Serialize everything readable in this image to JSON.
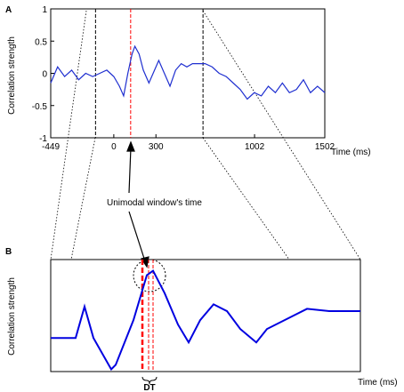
{
  "chart_data": [
    {
      "type": "line",
      "panel_label": "A",
      "ylabel": "Correlation strength",
      "xlabel": "Time (ms)",
      "xlim": [
        -449,
        1502
      ],
      "ylim": [
        -1,
        1
      ],
      "xticks": [
        -449,
        0,
        300,
        1002,
        1502
      ],
      "yticks": [
        -1,
        -0.5,
        0,
        0.5,
        1
      ],
      "x": [
        -449,
        -400,
        -350,
        -300,
        -250,
        -200,
        -150,
        -100,
        -50,
        0,
        40,
        70,
        100,
        130,
        150,
        180,
        210,
        250,
        290,
        320,
        360,
        400,
        440,
        480,
        520,
        560,
        600,
        650,
        700,
        750,
        800,
        850,
        900,
        950,
        1000,
        1050,
        1100,
        1150,
        1200,
        1250,
        1300,
        1350,
        1400,
        1450,
        1502
      ],
      "series": [
        {
          "color": "#1f2fd0",
          "values": [
            -0.15,
            0.1,
            -0.05,
            0.05,
            -0.1,
            0.0,
            -0.05,
            0.0,
            0.05,
            -0.05,
            -0.2,
            -0.35,
            0.0,
            0.3,
            0.42,
            0.3,
            0.05,
            -0.15,
            0.05,
            0.2,
            0.0,
            -0.2,
            0.05,
            0.15,
            0.1,
            0.15,
            0.15,
            0.15,
            0.1,
            0.0,
            -0.05,
            -0.15,
            -0.25,
            -0.4,
            -0.3,
            -0.35,
            -0.2,
            -0.3,
            -0.15,
            -0.3,
            -0.25,
            -0.1,
            -0.3,
            -0.2,
            -0.3
          ]
        }
      ],
      "vlines": [
        {
          "x": -130,
          "color": "#000000"
        },
        {
          "x": 120,
          "color": "#ff0000"
        },
        {
          "x": 635,
          "color": "#000000"
        }
      ],
      "annotation": "Unimodal window's time"
    },
    {
      "type": "line",
      "panel_label": "B",
      "ylabel": "Correlation strength",
      "xlabel": "Time (ms)",
      "xlim": [
        0,
        348
      ],
      "ylim": [
        -0.5,
        0.5
      ],
      "x": [
        0,
        28,
        38,
        48,
        68,
        73,
        93,
        108,
        115,
        128,
        143,
        155,
        168,
        183,
        198,
        213,
        231,
        243,
        273,
        288,
        313,
        348
      ],
      "series": [
        {
          "color": "#0000e0",
          "values": [
            -0.2,
            -0.2,
            0.08,
            -0.2,
            -0.48,
            -0.44,
            -0.04,
            0.36,
            0.4,
            0.2,
            -0.08,
            -0.24,
            -0.04,
            0.1,
            0.04,
            -0.12,
            -0.24,
            -0.12,
            0.0,
            0.06,
            0.04,
            0.04
          ]
        }
      ],
      "vlines": [
        {
          "x": 103,
          "color": "#ff0000"
        },
        {
          "x": 110,
          "color": "#ff0000"
        },
        {
          "x": 115,
          "color": "#ff0000"
        }
      ],
      "annotation": "DT"
    }
  ]
}
